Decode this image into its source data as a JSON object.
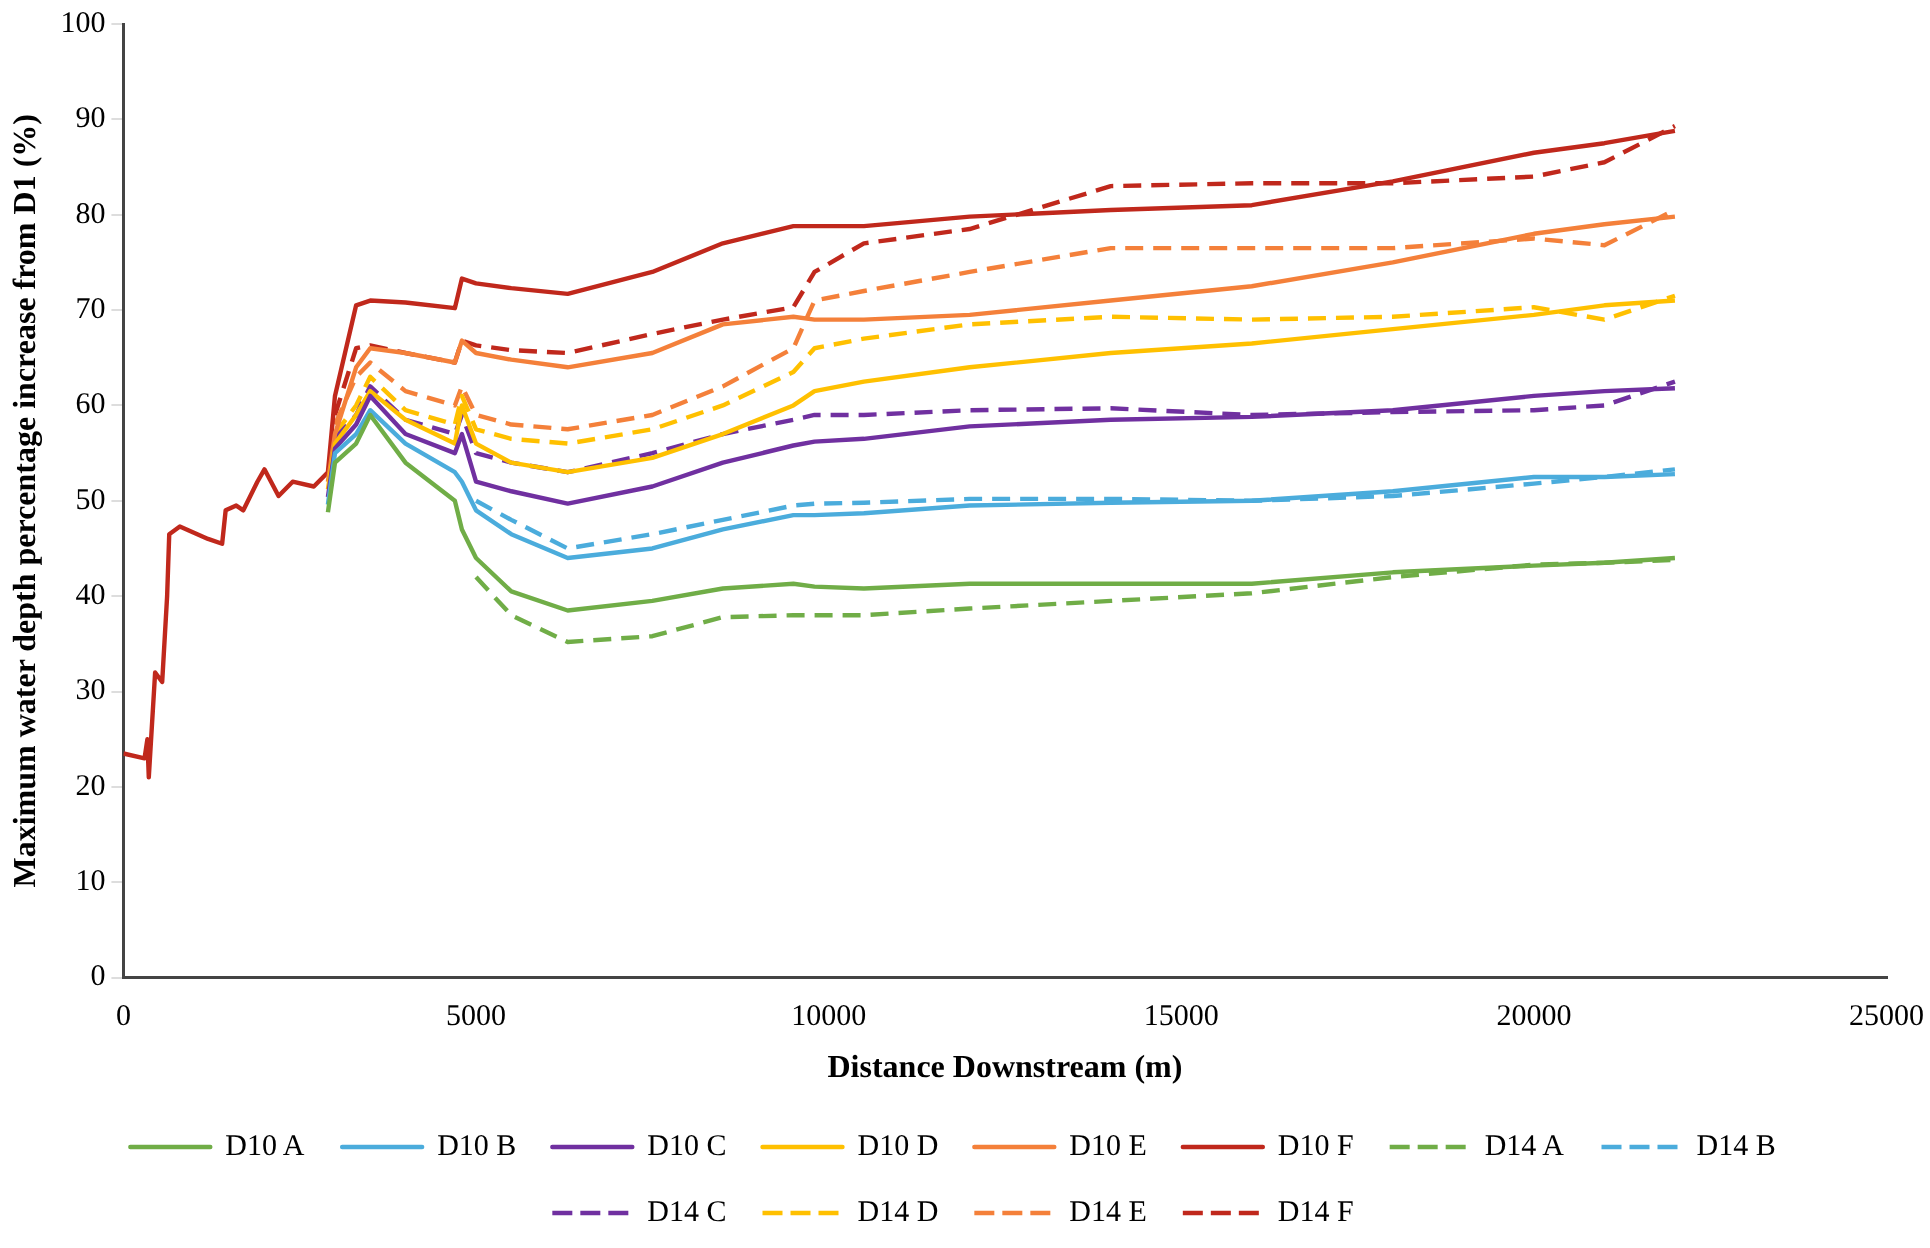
{
  "chart_data": {
    "type": "line",
    "xlabel": "Distance Downstream (m)",
    "ylabel": "Maximum water depth percentage increase from D1 (%)",
    "x": [
      0,
      300,
      340,
      360,
      450,
      550,
      620,
      650,
      800,
      1200,
      1400,
      1450,
      1600,
      1700,
      1900,
      2000,
      2200,
      2400,
      2700,
      2900,
      3000,
      3300,
      3500,
      4000,
      4700,
      4800,
      5000,
      5500,
      6300,
      7500,
      8500,
      9500,
      9800,
      10500,
      12000,
      14000,
      16000,
      18000,
      20000,
      21000,
      22000
    ],
    "xlim": [
      0,
      25000
    ],
    "xticks": [
      0,
      5000,
      10000,
      15000,
      20000,
      25000
    ],
    "ylim": [
      0,
      100
    ],
    "yticks": [
      0,
      10,
      20,
      30,
      40,
      50,
      60,
      70,
      80,
      90,
      100
    ],
    "legend": "bottom",
    "series": [
      {
        "name": "D10 A",
        "color": "#70ad47",
        "line_style": "solid",
        "values": [
          null,
          null,
          null,
          null,
          null,
          null,
          null,
          null,
          null,
          null,
          null,
          null,
          null,
          null,
          null,
          null,
          null,
          null,
          null,
          48.8,
          54,
          56,
          59,
          54,
          50,
          47,
          44,
          40.5,
          38.5,
          39.5,
          40.8,
          41.3,
          41,
          40.8,
          41.3,
          41.3,
          41.3,
          42.5,
          43.2,
          43.5,
          44
        ]
      },
      {
        "name": "D10 B",
        "color": "#4bacdc",
        "line_style": "solid",
        "values": [
          null,
          null,
          null,
          null,
          null,
          null,
          null,
          null,
          null,
          null,
          null,
          null,
          null,
          null,
          null,
          null,
          null,
          null,
          null,
          49.6,
          55,
          57,
          59.5,
          56,
          53,
          52,
          49,
          46.5,
          44,
          45,
          47,
          48.5,
          48.5,
          48.7,
          49.5,
          49.8,
          50,
          51,
          52.5,
          52.5,
          52.8
        ]
      },
      {
        "name": "D10 C",
        "color": "#7030a0",
        "line_style": "solid",
        "values": [
          null,
          null,
          null,
          null,
          null,
          null,
          null,
          null,
          null,
          null,
          null,
          null,
          null,
          null,
          null,
          null,
          null,
          null,
          null,
          50.4,
          55.5,
          58,
          61,
          57,
          55,
          57,
          52,
          51,
          49.7,
          51.5,
          54,
          55.8,
          56.2,
          56.5,
          57.8,
          58.5,
          58.8,
          59.5,
          61,
          61.5,
          61.8
        ]
      },
      {
        "name": "D10 D",
        "color": "#ffc000",
        "line_style": "solid",
        "values": [
          null,
          null,
          null,
          null,
          null,
          null,
          null,
          null,
          null,
          null,
          null,
          null,
          null,
          null,
          null,
          null,
          null,
          null,
          null,
          51.2,
          56,
          59,
          61.5,
          58.5,
          56,
          60,
          56,
          54,
          53,
          54.5,
          57,
          60,
          61.5,
          62.5,
          64,
          65.5,
          66.5,
          68,
          69.5,
          70.5,
          71
        ]
      },
      {
        "name": "D10 E",
        "color": "#f4803a",
        "line_style": "solid",
        "values": [
          null,
          null,
          null,
          null,
          null,
          null,
          null,
          null,
          null,
          null,
          null,
          null,
          null,
          null,
          null,
          null,
          null,
          null,
          null,
          52,
          57,
          64,
          66,
          65.5,
          64.5,
          66.8,
          65.5,
          64.8,
          64,
          65.5,
          68.5,
          69.3,
          69,
          69,
          69.5,
          71,
          72.5,
          75,
          78,
          79,
          79.8
        ]
      },
      {
        "name": "D10 F",
        "color": "#c0281c",
        "line_style": "solid",
        "values": [
          23.5,
          23,
          25,
          21,
          32,
          31,
          40,
          46.5,
          47.3,
          46,
          45.5,
          49,
          49.5,
          49,
          52,
          53.3,
          50.5,
          52,
          51.5,
          53,
          61,
          70.5,
          71,
          70.8,
          70.2,
          73.3,
          72.8,
          72.3,
          71.7,
          74,
          77,
          78.8,
          78.8,
          78.8,
          79.8,
          80.5,
          81,
          83.5,
          86.5,
          87.5,
          88.8
        ]
      },
      {
        "name": "D14 A",
        "color": "#70ad47",
        "line_style": "dashed",
        "values": [
          null,
          null,
          null,
          null,
          null,
          null,
          null,
          null,
          null,
          null,
          null,
          null,
          null,
          null,
          null,
          null,
          null,
          null,
          null,
          null,
          null,
          null,
          null,
          null,
          null,
          null,
          42,
          38,
          35.2,
          35.8,
          37.8,
          38,
          38,
          38,
          38.7,
          39.5,
          40.3,
          42,
          43.3,
          43.5,
          43.8
        ]
      },
      {
        "name": "D14 B",
        "color": "#4bacdc",
        "line_style": "dashed",
        "values": [
          null,
          null,
          null,
          null,
          null,
          null,
          null,
          null,
          null,
          null,
          null,
          null,
          null,
          null,
          null,
          null,
          null,
          null,
          null,
          null,
          null,
          null,
          null,
          null,
          null,
          null,
          50,
          48,
          45,
          46.5,
          48,
          49.5,
          49.7,
          49.8,
          50.2,
          50.2,
          50,
          50.5,
          51.8,
          52.5,
          53.3
        ]
      },
      {
        "name": "D14 C",
        "color": "#7030a0",
        "line_style": "dashed",
        "values": [
          null,
          null,
          null,
          null,
          null,
          null,
          null,
          null,
          null,
          null,
          null,
          null,
          null,
          null,
          null,
          null,
          null,
          null,
          null,
          null,
          56.5,
          59,
          62,
          58.5,
          57,
          59,
          55,
          54,
          53,
          55,
          57,
          58.5,
          59,
          59,
          59.5,
          59.7,
          59,
          59.3,
          59.5,
          60,
          62.5
        ]
      },
      {
        "name": "D14 D",
        "color": "#ffc000",
        "line_style": "dashed",
        "values": [
          null,
          null,
          null,
          null,
          null,
          null,
          null,
          null,
          null,
          null,
          null,
          null,
          null,
          null,
          null,
          null,
          null,
          null,
          null,
          null,
          57,
          60,
          63,
          59.5,
          58,
          61,
          57.5,
          56.5,
          56,
          57.5,
          60,
          63.5,
          66,
          67,
          68.5,
          69.3,
          69,
          69.3,
          70.3,
          69,
          71.5
        ]
      },
      {
        "name": "D14 E",
        "color": "#f4803a",
        "line_style": "dashed",
        "values": [
          null,
          null,
          null,
          null,
          null,
          null,
          null,
          null,
          null,
          null,
          null,
          null,
          null,
          null,
          null,
          null,
          null,
          null,
          null,
          null,
          58,
          63,
          64.5,
          61.5,
          60,
          62,
          59,
          58,
          57.5,
          59,
          62,
          66,
          71,
          72,
          74,
          76.5,
          76.5,
          76.5,
          77.5,
          76.8,
          80.5
        ]
      },
      {
        "name": "D14 F",
        "color": "#c0281c",
        "line_style": "dashed",
        "values": [
          null,
          null,
          null,
          null,
          null,
          null,
          null,
          null,
          null,
          null,
          null,
          null,
          null,
          null,
          null,
          null,
          null,
          null,
          null,
          null,
          59,
          66,
          66.3,
          65.5,
          64.5,
          66.8,
          66.3,
          65.8,
          65.5,
          67.5,
          69,
          70.3,
          74,
          77,
          78.5,
          83,
          83.3,
          83.3,
          84,
          85.5,
          89.3
        ]
      }
    ]
  }
}
